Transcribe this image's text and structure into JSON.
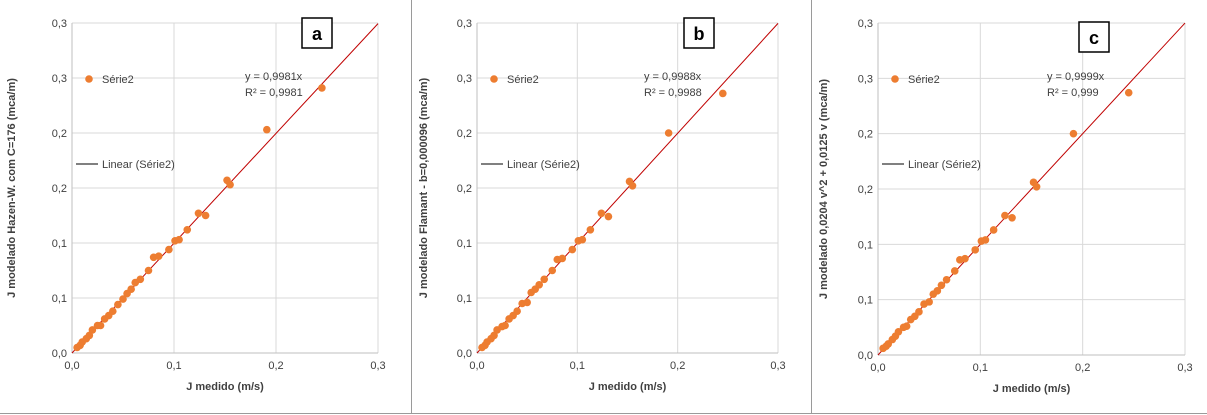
{
  "chart_data": [
    {
      "type": "scatter",
      "panel_letter": "a",
      "xlabel": "J medido (m/s)",
      "ylabel": "J modelado Hazen-W. com C=176 (mca/m)",
      "x_ticks": [
        "0,0",
        "0,1",
        "0,2",
        "0,3"
      ],
      "y_ticks": [
        "0,0",
        "0,1",
        "0,1",
        "0,2",
        "0,2",
        "0,3",
        "0,3"
      ],
      "xlim": [
        0,
        0.3
      ],
      "ylim": [
        0,
        0.3
      ],
      "grid": true,
      "legend": {
        "series_label": "Série2",
        "trend_label": "Linear (Série2)",
        "placement": "left"
      },
      "trendline": {
        "equation": "y = 0,9981x",
        "r2": "R² = 0,9981",
        "slope": 0.9981
      },
      "series": [
        {
          "name": "Série2",
          "color": "#ED7D31",
          "x": [
            0.005,
            0.008,
            0.01,
            0.014,
            0.017,
            0.02,
            0.025,
            0.028,
            0.032,
            0.036,
            0.04,
            0.045,
            0.05,
            0.054,
            0.058,
            0.062,
            0.067,
            0.075,
            0.08,
            0.085,
            0.095,
            0.101,
            0.105,
            0.113,
            0.124,
            0.131,
            0.152,
            0.155,
            0.191,
            0.245
          ],
          "y": [
            0.005,
            0.007,
            0.01,
            0.013,
            0.016,
            0.021,
            0.025,
            0.025,
            0.031,
            0.034,
            0.038,
            0.044,
            0.049,
            0.054,
            0.058,
            0.064,
            0.067,
            0.075,
            0.087,
            0.088,
            0.094,
            0.102,
            0.103,
            0.112,
            0.127,
            0.125,
            0.157,
            0.153,
            0.203,
            0.241
          ]
        }
      ]
    },
    {
      "type": "scatter",
      "panel_letter": "b",
      "xlabel": "J medido (m/s)",
      "ylabel": "J modelado Flamant - b=0,000096 (mca/m)",
      "x_ticks": [
        "0,0",
        "0,1",
        "0,2",
        "0,3"
      ],
      "y_ticks": [
        "0,0",
        "0,1",
        "0,1",
        "0,2",
        "0,2",
        "0,3",
        "0,3"
      ],
      "xlim": [
        0,
        0.3
      ],
      "ylim": [
        0,
        0.3
      ],
      "grid": true,
      "legend": {
        "series_label": "Série2",
        "trend_label": "Linear (Série2)",
        "placement": "left"
      },
      "trendline": {
        "equation": "y = 0,9988x",
        "r2": "R² = 0,9988",
        "slope": 0.9988
      },
      "series": [
        {
          "name": "Série2",
          "color": "#ED7D31",
          "x": [
            0.005,
            0.008,
            0.01,
            0.014,
            0.017,
            0.02,
            0.025,
            0.028,
            0.032,
            0.036,
            0.04,
            0.045,
            0.05,
            0.054,
            0.058,
            0.062,
            0.067,
            0.075,
            0.08,
            0.085,
            0.095,
            0.101,
            0.105,
            0.113,
            0.124,
            0.131,
            0.152,
            0.155,
            0.191,
            0.245
          ],
          "y": [
            0.005,
            0.007,
            0.01,
            0.013,
            0.016,
            0.021,
            0.024,
            0.025,
            0.031,
            0.034,
            0.038,
            0.045,
            0.046,
            0.055,
            0.058,
            0.062,
            0.067,
            0.075,
            0.085,
            0.086,
            0.094,
            0.102,
            0.103,
            0.112,
            0.127,
            0.124,
            0.156,
            0.152,
            0.2,
            0.236
          ]
        }
      ]
    },
    {
      "type": "scatter",
      "panel_letter": "c",
      "xlabel": "J medido (m/s)",
      "ylabel": "J modelado 0,0204 v^2 + 0,0125 v (mca/m)",
      "x_ticks": [
        "0,0",
        "0,1",
        "0,2",
        "0,3"
      ],
      "y_ticks": [
        "0,0",
        "0,1",
        "0,1",
        "0,2",
        "0,2",
        "0,3",
        "0,3"
      ],
      "xlim": [
        0,
        0.3
      ],
      "ylim": [
        0,
        0.3
      ],
      "grid": true,
      "legend": {
        "series_label": "Série2",
        "trend_label": "Linear (Série2)",
        "placement": "left"
      },
      "trendline": {
        "equation": "y = 0,9999x",
        "r2": "R² = 0,999",
        "slope": 0.9999
      },
      "series": [
        {
          "name": "Série2",
          "color": "#ED7D31",
          "x": [
            0.005,
            0.008,
            0.01,
            0.014,
            0.017,
            0.02,
            0.025,
            0.028,
            0.032,
            0.036,
            0.04,
            0.045,
            0.05,
            0.054,
            0.058,
            0.062,
            0.067,
            0.075,
            0.08,
            0.085,
            0.095,
            0.101,
            0.105,
            0.113,
            0.124,
            0.131,
            0.152,
            0.155,
            0.191,
            0.245
          ],
          "y": [
            0.006,
            0.008,
            0.01,
            0.014,
            0.017,
            0.021,
            0.025,
            0.026,
            0.032,
            0.035,
            0.039,
            0.046,
            0.048,
            0.055,
            0.058,
            0.063,
            0.068,
            0.076,
            0.086,
            0.087,
            0.095,
            0.103,
            0.104,
            0.113,
            0.126,
            0.124,
            0.156,
            0.152,
            0.2,
            0.237
          ]
        }
      ]
    }
  ]
}
